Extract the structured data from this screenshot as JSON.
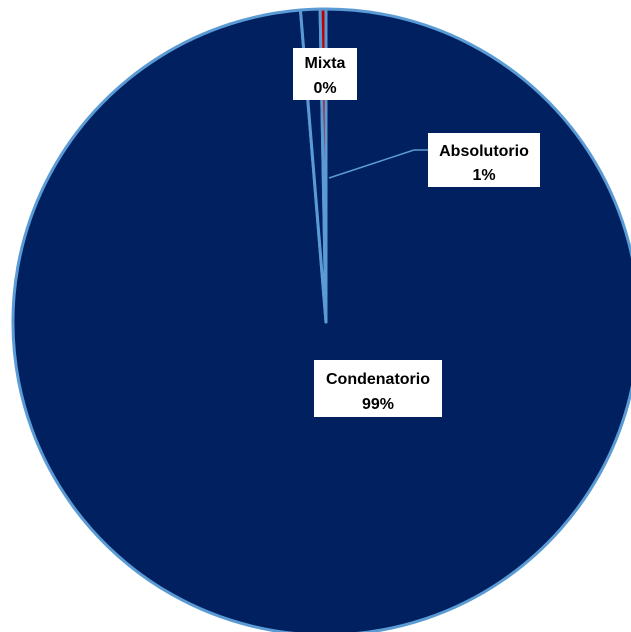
{
  "chart_data": {
    "type": "pie",
    "title": "",
    "categories": [
      "Condenatorio",
      "Absolutorio",
      "Mixta"
    ],
    "values": [
      98.7,
      1.0,
      0.3
    ],
    "data_labels": [
      {
        "name": "Condenatorio",
        "value": "99%"
      },
      {
        "name": "Absolutorio",
        "value": "1%"
      },
      {
        "name": "Mixta",
        "value": "0%"
      }
    ],
    "colors": [
      "#002060",
      "#002060",
      "#C00000"
    ],
    "border_color": "#5B9BD5",
    "legend": "none"
  }
}
